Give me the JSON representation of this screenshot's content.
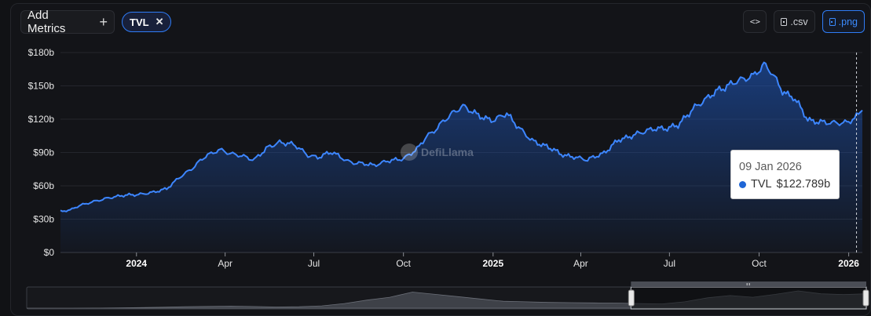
{
  "toolbar": {
    "add_metrics_label": "Add Metrics",
    "plus_glyph": "+",
    "chip_label": "TVL",
    "chip_close_glyph": "✕",
    "embed_glyph": "<>",
    "csv_label": ".csv",
    "png_label": ".png"
  },
  "watermark": "DefiLlama",
  "tooltip": {
    "date": "09 Jan 2026",
    "series": "TVL",
    "value": "$122.789b"
  },
  "colors": {
    "accent": "#2f7cf6",
    "line": "#3d86ff",
    "background": "#131418"
  },
  "chart_data": {
    "type": "area",
    "series": [
      {
        "name": "TVL",
        "x": [
          "2023-10-15",
          "2023-10-25",
          "2023-11-05",
          "2023-11-20",
          "2023-12-01",
          "2023-12-15",
          "2024-01-01",
          "2024-01-15",
          "2024-02-01",
          "2024-02-15",
          "2024-03-01",
          "2024-03-14",
          "2024-03-25",
          "2024-04-05",
          "2024-04-20",
          "2024-05-01",
          "2024-05-15",
          "2024-05-27",
          "2024-06-10",
          "2024-06-25",
          "2024-07-05",
          "2024-07-20",
          "2024-08-05",
          "2024-08-20",
          "2024-09-01",
          "2024-09-15",
          "2024-10-01",
          "2024-10-15",
          "2024-10-25",
          "2024-11-05",
          "2024-11-20",
          "2024-12-01",
          "2024-12-05",
          "2024-12-15",
          "2025-01-01",
          "2025-01-15",
          "2025-01-25",
          "2025-02-10",
          "2025-02-25",
          "2025-03-10",
          "2025-03-25",
          "2025-04-08",
          "2025-04-25",
          "2025-05-10",
          "2025-05-25",
          "2025-06-10",
          "2025-06-25",
          "2025-07-10",
          "2025-07-25",
          "2025-08-10",
          "2025-08-25",
          "2025-09-10",
          "2025-09-25",
          "2025-10-06",
          "2025-10-15",
          "2025-10-25",
          "2025-11-05",
          "2025-11-20",
          "2025-12-01",
          "2025-12-15",
          "2026-01-01",
          "2026-01-09",
          "2026-01-15"
        ],
        "values": [
          37,
          38,
          43,
          46,
          49,
          51,
          52,
          54,
          57,
          68,
          78,
          88,
          92,
          90,
          86,
          84,
          95,
          99,
          97,
          88,
          86,
          90,
          82,
          80,
          78,
          82,
          84,
          93,
          105,
          112,
          126,
          131,
          129,
          124,
          119,
          125,
          114,
          100,
          96,
          89,
          86,
          83,
          90,
          101,
          106,
          110,
          112,
          114,
          130,
          140,
          148,
          156,
          158,
          170,
          160,
          145,
          140,
          120,
          117,
          116,
          118,
          122.789,
          128
        ]
      }
    ],
    "xticks": [
      {
        "date": "2024-01-01",
        "label": "2024",
        "bold": true
      },
      {
        "date": "2024-04-01",
        "label": "Apr",
        "bold": false
      },
      {
        "date": "2024-07-01",
        "label": "Jul",
        "bold": false
      },
      {
        "date": "2024-10-01",
        "label": "Oct",
        "bold": false
      },
      {
        "date": "2025-01-01",
        "label": "2025",
        "bold": true
      },
      {
        "date": "2025-04-01",
        "label": "Apr",
        "bold": false
      },
      {
        "date": "2025-07-01",
        "label": "Jul",
        "bold": false
      },
      {
        "date": "2025-10-01",
        "label": "Oct",
        "bold": false
      },
      {
        "date": "2026-01-01",
        "label": "2026",
        "bold": true
      }
    ],
    "yticks": [
      {
        "value": 0,
        "label": "$0"
      },
      {
        "value": 30,
        "label": "$30b"
      },
      {
        "value": 60,
        "label": "$60b"
      },
      {
        "value": 90,
        "label": "$90b"
      },
      {
        "value": 120,
        "label": "$120b"
      },
      {
        "value": 150,
        "label": "$150b"
      },
      {
        "value": 180,
        "label": "$180b"
      }
    ],
    "ylim": [
      0,
      180
    ],
    "xlim": [
      "2023-10-15",
      "2026-01-15"
    ],
    "hover_date": "2026-01-09",
    "grid": true,
    "brush": {
      "full_range": [
        "2018-01-01",
        "2026-01-15"
      ],
      "selected": [
        "2023-10-15",
        "2026-01-15"
      ],
      "overview_values": [
        0,
        0,
        0,
        0.5,
        2,
        5,
        8,
        12,
        15,
        18,
        14,
        10,
        12,
        20,
        40,
        70,
        95,
        140,
        120,
        100,
        80,
        60,
        55,
        50,
        48,
        46,
        44,
        40,
        37,
        55,
        90,
        110,
        95,
        120,
        150,
        125,
        118,
        125
      ]
    }
  }
}
